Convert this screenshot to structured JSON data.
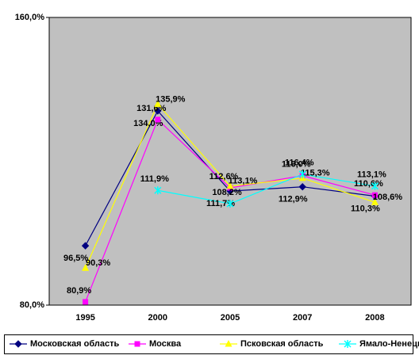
{
  "chart_data": {
    "type": "line",
    "categories": [
      "1995",
      "2000",
      "2005",
      "2007",
      "2008"
    ],
    "ylim": [
      80,
      160
    ],
    "yticks": [
      {
        "value": 80,
        "label": "80,0%"
      },
      {
        "value": 160,
        "label": "160,0%"
      }
    ],
    "grid": false,
    "legend": "bottom",
    "series": [
      {
        "name": "Московская область",
        "color": "#000080",
        "marker": "diamond",
        "values": [
          96.5,
          134.0,
          111.7,
          112.9,
          110.3
        ],
        "value_labels": [
          "96,5%",
          "134,0%",
          "111,7%",
          "112,9%",
          "110,3%"
        ]
      },
      {
        "name": "Москва",
        "color": "#ff00ff",
        "marker": "square",
        "values": [
          80.9,
          131.6,
          112.6,
          116.0,
          110.6
        ],
        "value_labels": [
          "80,9%",
          "131,6%",
          "112,6%",
          "116,0%",
          "110,6%"
        ]
      },
      {
        "name": "Псковская область",
        "color": "#ffff00",
        "marker": "triangle",
        "values": [
          90.3,
          135.9,
          113.1,
          115.3,
          108.6
        ],
        "value_labels": [
          "90,3%",
          "135,9%",
          "113,1%",
          "115,3%",
          "108,6%"
        ]
      },
      {
        "name": "Ямало-Ненецкий АО",
        "color": "#00ffff",
        "marker": "star",
        "values": [
          null,
          111.9,
          108.2,
          116.4,
          113.1
        ],
        "value_labels": [
          null,
          "111,9%",
          "108,2%",
          "116,4%",
          "113,1%"
        ]
      }
    ]
  }
}
